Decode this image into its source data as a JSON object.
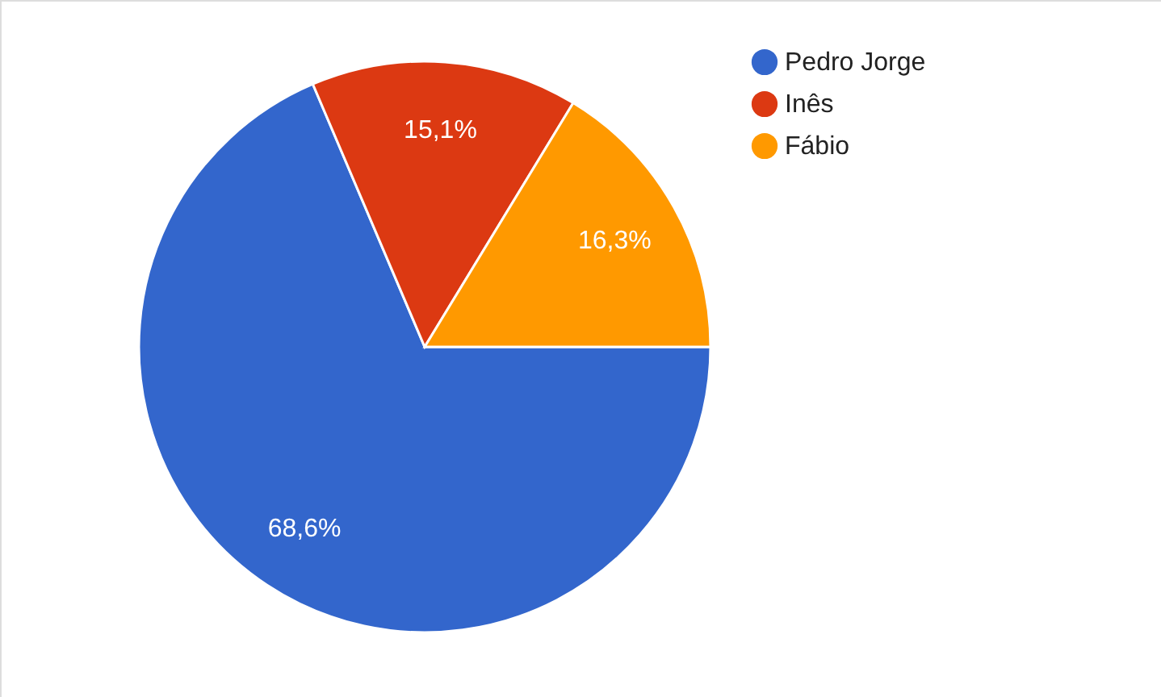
{
  "chart_data": {
    "type": "pie",
    "categories": [
      "Pedro Jorge",
      "Inês",
      "Fábio"
    ],
    "values": [
      68.6,
      15.1,
      16.3
    ],
    "value_labels": [
      "68,6%",
      "15,1%",
      "16,3%"
    ],
    "colors": [
      "#3366cc",
      "#dc3912",
      "#ff9900"
    ],
    "legend": "top right"
  }
}
